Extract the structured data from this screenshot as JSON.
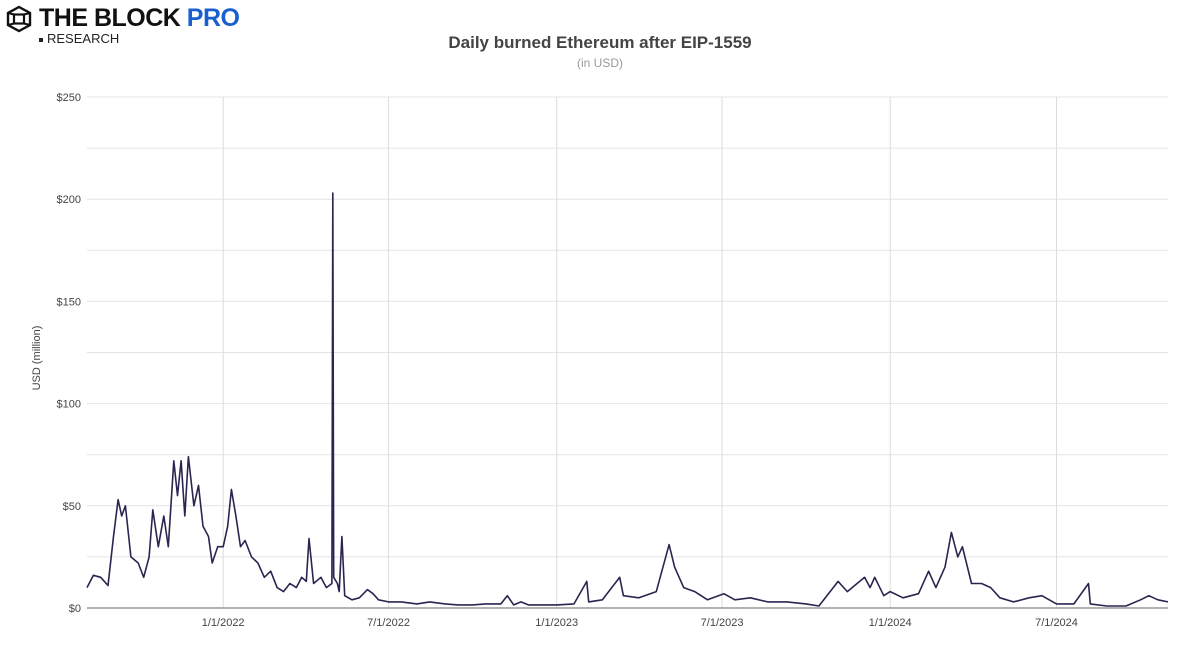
{
  "logo": {
    "brand": "THE BLOCK ",
    "brand_accent": "PRO",
    "sub": "RESEARCH",
    "accent_color": "#1a5fd0"
  },
  "chart_data": {
    "type": "line",
    "title": "Daily burned Ethereum after EIP-1559",
    "subtitle": "(in USD)",
    "xlabel": "",
    "ylabel": "USD (million)",
    "xlim": [
      "2021-08-05",
      "2024-10-31"
    ],
    "ylim": [
      0,
      250
    ],
    "yticks": [
      0,
      50,
      100,
      150,
      200,
      250
    ],
    "ytick_labels": [
      "$0",
      "$50",
      "$100",
      "$150",
      "$200",
      "$250"
    ],
    "xticks": [
      "2022-01-01",
      "2022-07-01",
      "2023-01-01",
      "2023-07-01",
      "2024-01-01",
      "2024-07-01"
    ],
    "xtick_labels": [
      "1/1/2022",
      "7/1/2022",
      "1/1/2023",
      "7/1/2023",
      "1/1/2024",
      "7/1/2024"
    ],
    "grid": true,
    "line_color": "#2a2550",
    "series": [
      {
        "points": [
          [
            "2021-08-05",
            10
          ],
          [
            "2021-08-12",
            16
          ],
          [
            "2021-08-20",
            15
          ],
          [
            "2021-08-28",
            11
          ],
          [
            "2021-09-03",
            35
          ],
          [
            "2021-09-08",
            53
          ],
          [
            "2021-09-12",
            45
          ],
          [
            "2021-09-16",
            50
          ],
          [
            "2021-09-22",
            25
          ],
          [
            "2021-09-30",
            22
          ],
          [
            "2021-10-06",
            15
          ],
          [
            "2021-10-12",
            25
          ],
          [
            "2021-10-16",
            48
          ],
          [
            "2021-10-22",
            30
          ],
          [
            "2021-10-28",
            45
          ],
          [
            "2021-11-02",
            30
          ],
          [
            "2021-11-08",
            72
          ],
          [
            "2021-11-12",
            55
          ],
          [
            "2021-11-16",
            72
          ],
          [
            "2021-11-20",
            45
          ],
          [
            "2021-11-24",
            74
          ],
          [
            "2021-11-30",
            50
          ],
          [
            "2021-12-05",
            60
          ],
          [
            "2021-12-10",
            40
          ],
          [
            "2021-12-16",
            35
          ],
          [
            "2021-12-20",
            22
          ],
          [
            "2021-12-26",
            30
          ],
          [
            "2022-01-01",
            30
          ],
          [
            "2022-01-06",
            40
          ],
          [
            "2022-01-10",
            58
          ],
          [
            "2022-01-15",
            45
          ],
          [
            "2022-01-20",
            30
          ],
          [
            "2022-01-25",
            33
          ],
          [
            "2022-02-01",
            25
          ],
          [
            "2022-02-08",
            22
          ],
          [
            "2022-02-15",
            15
          ],
          [
            "2022-02-22",
            18
          ],
          [
            "2022-03-01",
            10
          ],
          [
            "2022-03-08",
            8
          ],
          [
            "2022-03-15",
            12
          ],
          [
            "2022-03-22",
            10
          ],
          [
            "2022-03-28",
            15
          ],
          [
            "2022-04-02",
            13
          ],
          [
            "2022-04-05",
            34
          ],
          [
            "2022-04-10",
            12
          ],
          [
            "2022-04-18",
            15
          ],
          [
            "2022-04-24",
            10
          ],
          [
            "2022-04-30",
            12
          ],
          [
            "2022-05-01",
            203
          ],
          [
            "2022-05-02",
            15
          ],
          [
            "2022-05-06",
            12
          ],
          [
            "2022-05-08",
            8
          ],
          [
            "2022-05-11",
            35
          ],
          [
            "2022-05-14",
            6
          ],
          [
            "2022-05-22",
            4
          ],
          [
            "2022-05-30",
            5
          ],
          [
            "2022-06-08",
            9
          ],
          [
            "2022-06-14",
            7
          ],
          [
            "2022-06-20",
            4
          ],
          [
            "2022-07-01",
            3
          ],
          [
            "2022-07-15",
            3
          ],
          [
            "2022-08-01",
            2
          ],
          [
            "2022-08-15",
            3
          ],
          [
            "2022-09-01",
            2
          ],
          [
            "2022-09-15",
            1.5
          ],
          [
            "2022-10-01",
            1.5
          ],
          [
            "2022-10-15",
            2
          ],
          [
            "2022-11-01",
            2
          ],
          [
            "2022-11-08",
            6
          ],
          [
            "2022-11-15",
            1.5
          ],
          [
            "2022-11-23",
            3
          ],
          [
            "2022-12-01",
            1.5
          ],
          [
            "2023-01-01",
            1.5
          ],
          [
            "2023-01-20",
            2
          ],
          [
            "2023-02-03",
            13
          ],
          [
            "2023-02-05",
            3
          ],
          [
            "2023-02-20",
            4
          ],
          [
            "2023-03-11",
            15
          ],
          [
            "2023-03-15",
            6
          ],
          [
            "2023-04-01",
            5
          ],
          [
            "2023-04-20",
            8
          ],
          [
            "2023-05-04",
            31
          ],
          [
            "2023-05-10",
            20
          ],
          [
            "2023-05-20",
            10
          ],
          [
            "2023-06-01",
            8
          ],
          [
            "2023-06-15",
            4
          ],
          [
            "2023-07-03",
            7
          ],
          [
            "2023-07-15",
            4
          ],
          [
            "2023-08-01",
            5
          ],
          [
            "2023-08-20",
            3
          ],
          [
            "2023-09-10",
            3
          ],
          [
            "2023-10-01",
            2
          ],
          [
            "2023-10-15",
            1
          ],
          [
            "2023-11-05",
            13
          ],
          [
            "2023-11-15",
            8
          ],
          [
            "2023-12-04",
            15
          ],
          [
            "2023-12-10",
            10
          ],
          [
            "2023-12-15",
            15
          ],
          [
            "2023-12-25",
            6
          ],
          [
            "2024-01-01",
            8
          ],
          [
            "2024-01-15",
            5
          ],
          [
            "2024-02-01",
            7
          ],
          [
            "2024-02-12",
            18
          ],
          [
            "2024-02-20",
            10
          ],
          [
            "2024-03-01",
            20
          ],
          [
            "2024-03-08",
            37
          ],
          [
            "2024-03-15",
            25
          ],
          [
            "2024-03-20",
            30
          ],
          [
            "2024-03-30",
            12
          ],
          [
            "2024-04-10",
            12
          ],
          [
            "2024-04-20",
            10
          ],
          [
            "2024-04-30",
            5
          ],
          [
            "2024-05-15",
            3
          ],
          [
            "2024-06-01",
            5
          ],
          [
            "2024-06-15",
            6
          ],
          [
            "2024-07-01",
            2
          ],
          [
            "2024-07-20",
            2
          ],
          [
            "2024-08-05",
            12
          ],
          [
            "2024-08-07",
            2
          ],
          [
            "2024-08-25",
            1
          ],
          [
            "2024-09-15",
            1
          ],
          [
            "2024-10-01",
            4
          ],
          [
            "2024-10-10",
            6
          ],
          [
            "2024-10-20",
            4
          ],
          [
            "2024-10-31",
            3
          ]
        ]
      }
    ]
  }
}
